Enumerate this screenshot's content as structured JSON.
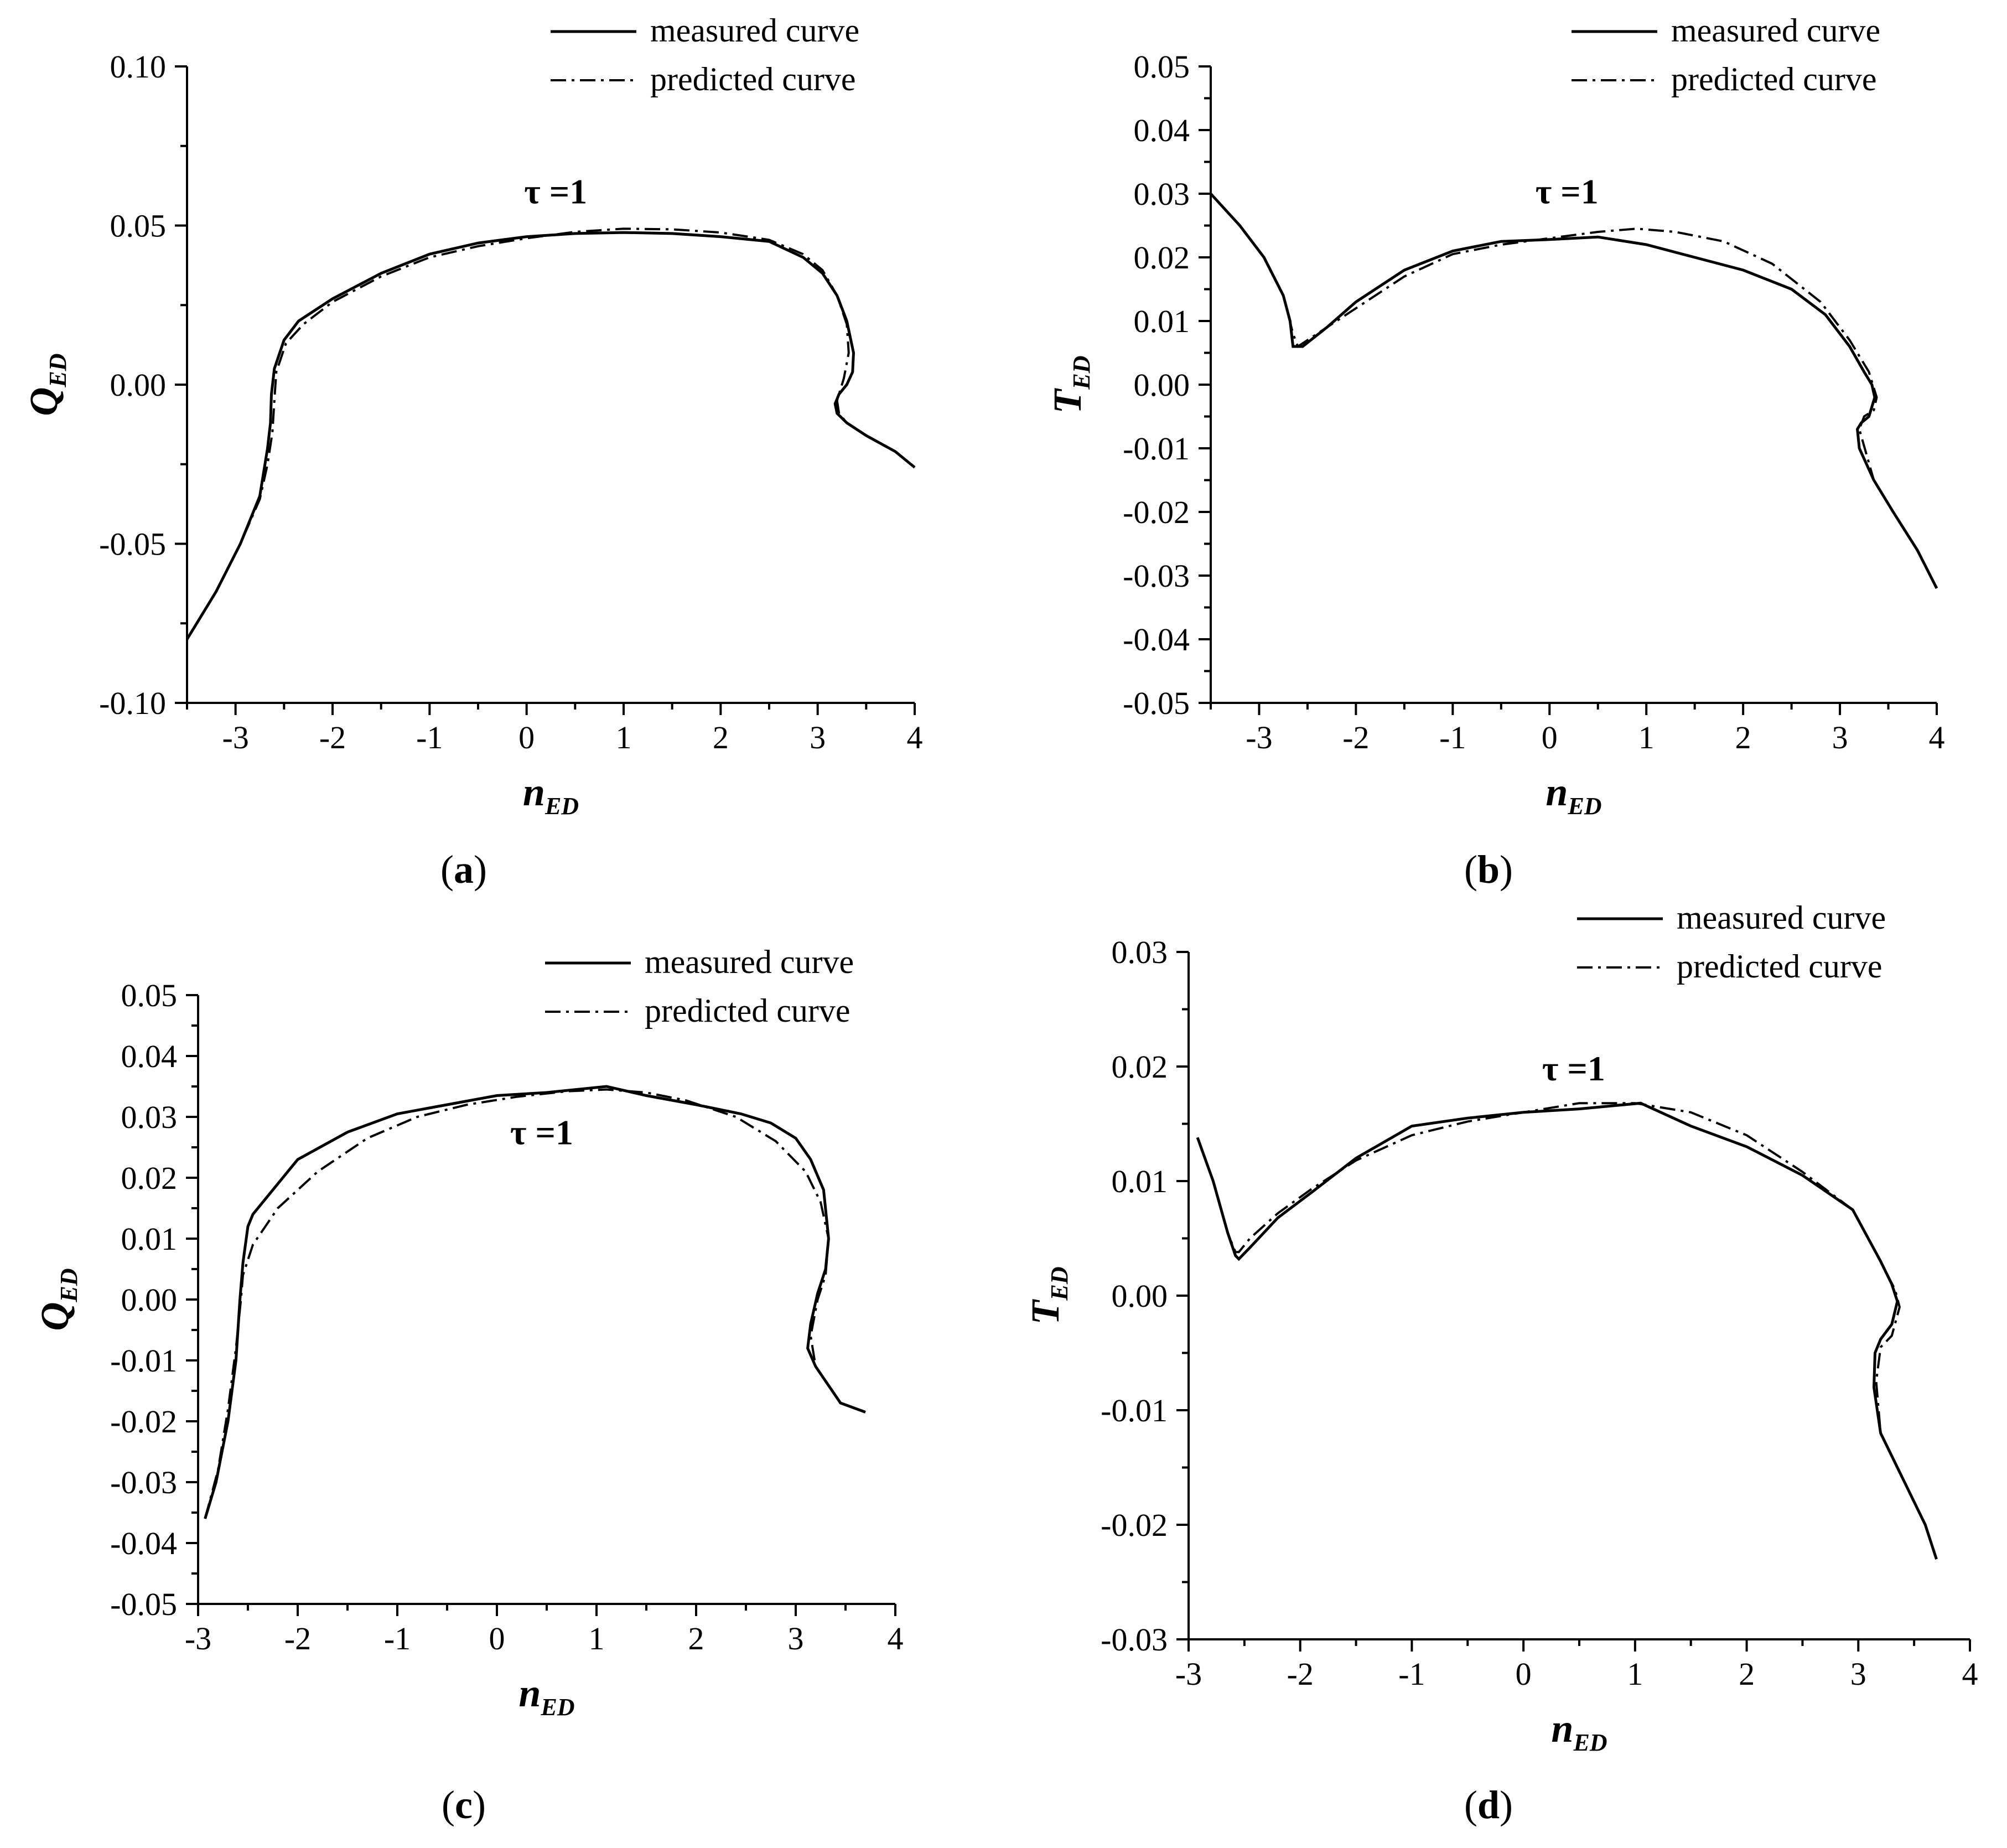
{
  "chart_data": [
    {
      "type": "line",
      "panel_label": "a",
      "xlabel": "n",
      "xlabel_sub": "ED",
      "ylabel": "Q",
      "ylabel_sub": "ED",
      "xlim": [
        -3.5,
        4
      ],
      "ylim": [
        -0.1,
        0.1
      ],
      "xticks": [
        -3,
        -2,
        -1,
        0,
        1,
        2,
        3,
        4
      ],
      "xtick_labels": [
        "-3",
        "-2",
        "-1",
        "0",
        "1",
        "2",
        "3",
        "4"
      ],
      "yticks": [
        -0.1,
        -0.05,
        0,
        0.05,
        0.1
      ],
      "ytick_labels": [
        "-0.10",
        "-0.05",
        "0.00",
        "0.05",
        "0.10"
      ],
      "annotation": "τ =1",
      "annotation_at": [
        0.3,
        0.057
      ],
      "legend": {
        "position": "top-right",
        "entries": [
          "measured curve",
          "predicted curve"
        ]
      },
      "series": [
        {
          "name": "measured curve",
          "style": "solid",
          "x": [
            -3.5,
            -3.2,
            -2.95,
            -2.75,
            -2.67,
            -2.64,
            -2.63,
            -2.6,
            -2.5,
            -2.35,
            -2.0,
            -1.5,
            -1.0,
            -0.5,
            0,
            0.5,
            1.0,
            1.5,
            2.0,
            2.5,
            2.85,
            3.05,
            3.2,
            3.3,
            3.37,
            3.36,
            3.3,
            3.22,
            3.18,
            3.2,
            3.3,
            3.5,
            3.8,
            4.0
          ],
          "y": [
            -0.08,
            -0.065,
            -0.05,
            -0.035,
            -0.02,
            -0.012,
            -0.003,
            0.005,
            0.014,
            0.02,
            0.027,
            0.035,
            0.041,
            0.0445,
            0.0465,
            0.0475,
            0.0478,
            0.0475,
            0.0465,
            0.045,
            0.04,
            0.035,
            0.028,
            0.02,
            0.01,
            0.004,
            0.0,
            -0.003,
            -0.006,
            -0.009,
            -0.012,
            -0.016,
            -0.021,
            -0.026
          ]
        },
        {
          "name": "predicted curve",
          "style": "dash-dot",
          "x": [
            -3.5,
            -3.2,
            -2.95,
            -2.75,
            -2.67,
            -2.62,
            -2.6,
            -2.58,
            -2.48,
            -2.3,
            -2.0,
            -1.5,
            -1.0,
            -0.5,
            0,
            0.5,
            1.0,
            1.5,
            2.0,
            2.5,
            2.85,
            3.05,
            3.2,
            3.3,
            3.32,
            3.27,
            3.2,
            3.22,
            3.3,
            3.5,
            3.8,
            4.0
          ],
          "y": [
            -0.08,
            -0.065,
            -0.05,
            -0.036,
            -0.025,
            -0.015,
            -0.005,
            0.004,
            0.013,
            0.019,
            0.026,
            0.034,
            0.04,
            0.0435,
            0.046,
            0.048,
            0.049,
            0.0488,
            0.0478,
            0.0455,
            0.041,
            0.036,
            0.028,
            0.019,
            0.01,
            0.002,
            -0.005,
            -0.009,
            -0.012,
            -0.016,
            -0.021,
            -0.026
          ]
        }
      ]
    },
    {
      "type": "line",
      "panel_label": "b",
      "xlabel": "n",
      "xlabel_sub": "ED",
      "ylabel": "T",
      "ylabel_sub": "ED",
      "xlim": [
        -3.5,
        4
      ],
      "ylim": [
        -0.05,
        0.05
      ],
      "xticks": [
        -3,
        -2,
        -1,
        0,
        1,
        2,
        3,
        4
      ],
      "xtick_labels": [
        "-3",
        "-2",
        "-1",
        "0",
        "1",
        "2",
        "3",
        "4"
      ],
      "yticks": [
        -0.05,
        -0.04,
        -0.03,
        -0.02,
        -0.01,
        0,
        0.01,
        0.02,
        0.03,
        0.04,
        0.05
      ],
      "ytick_labels": [
        "-0.05",
        "-0.04",
        "-0.03",
        "-0.02",
        "-0.01",
        "0.00",
        "0.01",
        "0.02",
        "0.03",
        "0.04",
        "0.05"
      ],
      "annotation": "τ =1",
      "annotation_at": [
        0.18,
        0.0285
      ],
      "legend": {
        "position": "top-right",
        "entries": [
          "measured curve",
          "predicted curve"
        ]
      },
      "series": [
        {
          "name": "measured curve",
          "style": "solid",
          "x": [
            -3.5,
            -3.2,
            -2.95,
            -2.75,
            -2.68,
            -2.65,
            -2.55,
            -2.3,
            -2.0,
            -1.5,
            -1.0,
            -0.5,
            0,
            0.5,
            1.0,
            1.5,
            2.0,
            2.5,
            2.85,
            3.1,
            3.25,
            3.33,
            3.36,
            3.3,
            3.22,
            3.18,
            3.2,
            3.35,
            3.55,
            3.8,
            4.0
          ],
          "y": [
            0.03,
            0.025,
            0.02,
            0.014,
            0.01,
            0.006,
            0.006,
            0.009,
            0.013,
            0.018,
            0.021,
            0.0225,
            0.0228,
            0.0232,
            0.022,
            0.02,
            0.018,
            0.015,
            0.011,
            0.006,
            0.002,
            0.0,
            -0.002,
            -0.005,
            -0.006,
            -0.007,
            -0.01,
            -0.015,
            -0.02,
            -0.026,
            -0.032
          ]
        },
        {
          "name": "predicted curve",
          "style": "dash-dot",
          "x": [
            -3.5,
            -3.2,
            -2.95,
            -2.75,
            -2.65,
            -2.6,
            -2.5,
            -2.3,
            -2.0,
            -1.5,
            -1.0,
            -0.5,
            0,
            0.5,
            0.9,
            1.3,
            1.8,
            2.3,
            2.8,
            3.1,
            3.3,
            3.38,
            3.35,
            3.25,
            3.2,
            3.35,
            3.55,
            3.8,
            4.0
          ],
          "y": [
            0.03,
            0.025,
            0.02,
            0.014,
            0.008,
            0.006,
            0.007,
            0.009,
            0.012,
            0.017,
            0.0205,
            0.022,
            0.023,
            0.024,
            0.0245,
            0.024,
            0.0225,
            0.019,
            0.013,
            0.007,
            0.002,
            -0.002,
            -0.004,
            -0.005,
            -0.007,
            -0.015,
            -0.02,
            -0.026,
            -0.032
          ]
        }
      ]
    },
    {
      "type": "line",
      "panel_label": "c",
      "xlabel": "n",
      "xlabel_sub": "ED",
      "ylabel": "Q",
      "ylabel_sub": "ED",
      "xlim": [
        -3,
        4
      ],
      "ylim": [
        -0.05,
        0.05
      ],
      "xticks": [
        -3,
        -2,
        -1,
        0,
        1,
        2,
        3,
        4
      ],
      "xtick_labels": [
        "-3",
        "-2",
        "-1",
        "0",
        "1",
        "2",
        "3",
        "4"
      ],
      "yticks": [
        -0.05,
        -0.04,
        -0.03,
        -0.02,
        -0.01,
        0,
        0.01,
        0.02,
        0.03,
        0.04,
        0.05
      ],
      "ytick_labels": [
        "-0.05",
        "-0.04",
        "-0.03",
        "-0.02",
        "-0.01",
        "0.00",
        "0.01",
        "0.02",
        "0.03",
        "0.04",
        "0.05"
      ],
      "annotation": "τ =1",
      "annotation_at": [
        0.45,
        0.0255
      ],
      "legend": {
        "position": "top-right",
        "entries": [
          "measured curve",
          "predicted curve"
        ]
      },
      "series": [
        {
          "name": "measured curve",
          "style": "solid",
          "x": [
            -2.93,
            -2.82,
            -2.7,
            -2.62,
            -2.58,
            -2.55,
            -2.5,
            -2.45,
            -2.0,
            -1.5,
            -1.0,
            -0.5,
            0,
            0.5,
            1.1,
            1.5,
            2.0,
            2.45,
            2.75,
            3.0,
            3.15,
            3.28,
            3.33,
            3.3,
            3.22,
            3.15,
            3.12,
            3.2,
            3.45,
            3.7
          ],
          "y": [
            -0.036,
            -0.03,
            -0.02,
            -0.01,
            0.0,
            0.006,
            0.012,
            0.014,
            0.023,
            0.0275,
            0.0305,
            0.032,
            0.0335,
            0.034,
            0.035,
            0.0335,
            0.032,
            0.0305,
            0.029,
            0.0265,
            0.023,
            0.018,
            0.01,
            0.005,
            0.001,
            -0.004,
            -0.008,
            -0.011,
            -0.017,
            -0.0185
          ]
        },
        {
          "name": "predicted curve",
          "style": "dash-dot",
          "x": [
            -2.93,
            -2.8,
            -2.7,
            -2.62,
            -2.57,
            -2.55,
            -2.45,
            -2.2,
            -1.8,
            -1.3,
            -0.8,
            -0.3,
            0.2,
            0.7,
            1.1,
            1.5,
            1.9,
            2.4,
            2.8,
            3.1,
            3.25,
            3.33,
            3.3,
            3.22,
            3.15,
            3.2,
            3.45,
            3.7
          ],
          "y": [
            -0.036,
            -0.028,
            -0.018,
            -0.008,
            0.0,
            0.004,
            0.009,
            0.015,
            0.021,
            0.0265,
            0.03,
            0.032,
            0.0333,
            0.0342,
            0.0345,
            0.034,
            0.0327,
            0.03,
            0.026,
            0.021,
            0.016,
            0.01,
            0.004,
            0.0,
            -0.006,
            -0.011,
            -0.017,
            -0.0185
          ]
        }
      ]
    },
    {
      "type": "line",
      "panel_label": "d",
      "xlabel": "n",
      "xlabel_sub": "ED",
      "ylabel": "T",
      "ylabel_sub": "ED",
      "xlim": [
        -3,
        4
      ],
      "ylim": [
        -0.03,
        0.03
      ],
      "xticks": [
        -3,
        -2,
        -1,
        0,
        1,
        2,
        3,
        4
      ],
      "xtick_labels": [
        "-3",
        "-2",
        "-1",
        "0",
        "1",
        "2",
        "3",
        "4"
      ],
      "yticks": [
        -0.03,
        -0.02,
        -0.01,
        0,
        0.01,
        0.02,
        0.03
      ],
      "ytick_labels": [
        "-0.03",
        "-0.02",
        "-0.01",
        "0.00",
        "0.01",
        "0.02",
        "0.03"
      ],
      "annotation": "τ =1",
      "annotation_at": [
        0.45,
        0.0188
      ],
      "legend": {
        "position": "top-right",
        "entries": [
          "measured curve",
          "predicted curve"
        ]
      },
      "series": [
        {
          "name": "measured curve",
          "style": "solid",
          "x": [
            -2.92,
            -2.78,
            -2.65,
            -2.58,
            -2.55,
            -2.45,
            -2.2,
            -1.9,
            -1.5,
            -1.0,
            -0.5,
            0,
            0.5,
            1.05,
            1.5,
            2.0,
            2.5,
            2.95,
            3.2,
            3.3,
            3.35,
            3.3,
            3.2,
            3.15,
            3.14,
            3.2,
            3.4,
            3.6,
            3.7
          ],
          "y": [
            0.0138,
            0.01,
            0.0055,
            0.0035,
            0.0032,
            0.0042,
            0.0068,
            0.009,
            0.012,
            0.0148,
            0.0155,
            0.016,
            0.0163,
            0.0168,
            0.0148,
            0.013,
            0.0105,
            0.0075,
            0.003,
            0.001,
            -0.0005,
            -0.0025,
            -0.0038,
            -0.005,
            -0.008,
            -0.012,
            -0.016,
            -0.02,
            -0.023
          ]
        },
        {
          "name": "predicted curve",
          "style": "dash-dot",
          "x": [
            -2.92,
            -2.78,
            -2.65,
            -2.58,
            -2.55,
            -2.45,
            -2.2,
            -1.9,
            -1.5,
            -1.0,
            -0.5,
            0,
            0.5,
            1.0,
            1.5,
            2.0,
            2.5,
            2.95,
            3.2,
            3.33,
            3.37,
            3.3,
            3.2,
            3.16,
            3.2,
            3.4,
            3.6,
            3.7
          ],
          "y": [
            0.0138,
            0.01,
            0.0055,
            0.0038,
            0.0038,
            0.005,
            0.0072,
            0.0093,
            0.0118,
            0.014,
            0.0152,
            0.016,
            0.0168,
            0.0168,
            0.016,
            0.014,
            0.0108,
            0.0075,
            0.003,
            0.0005,
            -0.001,
            -0.0035,
            -0.0045,
            -0.0075,
            -0.012,
            -0.016,
            -0.02,
            -0.023
          ]
        }
      ]
    }
  ]
}
